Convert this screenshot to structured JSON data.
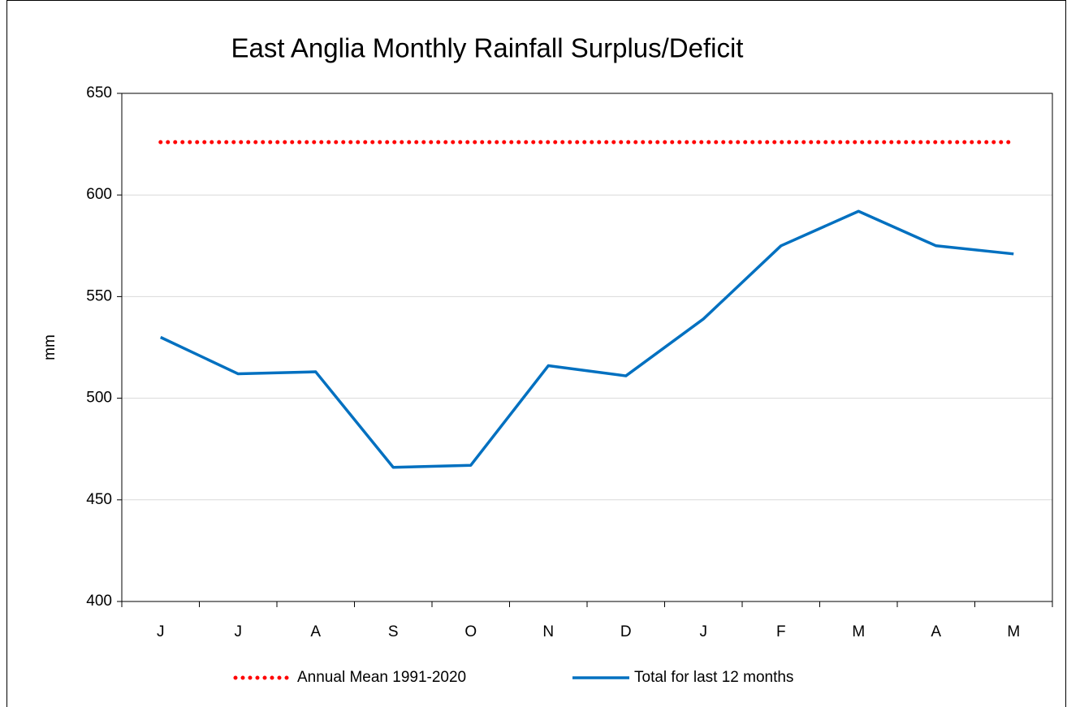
{
  "chart_data": {
    "type": "line",
    "title": "East Anglia Monthly Rainfall Surplus/Deficit",
    "ylabel": "mm",
    "categories": [
      "J",
      "J",
      "A",
      "S",
      "O",
      "N",
      "D",
      "J",
      "F",
      "M",
      "A",
      "M"
    ],
    "series": [
      {
        "name": "Annual Mean 1991-2020",
        "color": "#ff0000",
        "style": "dotted",
        "values": [
          626,
          626,
          626,
          626,
          626,
          626,
          626,
          626,
          626,
          626,
          626,
          626
        ]
      },
      {
        "name": "Total for last 12 months",
        "color": "#0070c0",
        "style": "solid",
        "values": [
          530,
          512,
          513,
          466,
          467,
          516,
          511,
          539,
          575,
          592,
          575,
          571
        ]
      }
    ],
    "ylim": [
      400,
      650
    ],
    "yticks": [
      400,
      450,
      500,
      550,
      600,
      650
    ],
    "grid": true,
    "legend": "bottom"
  }
}
